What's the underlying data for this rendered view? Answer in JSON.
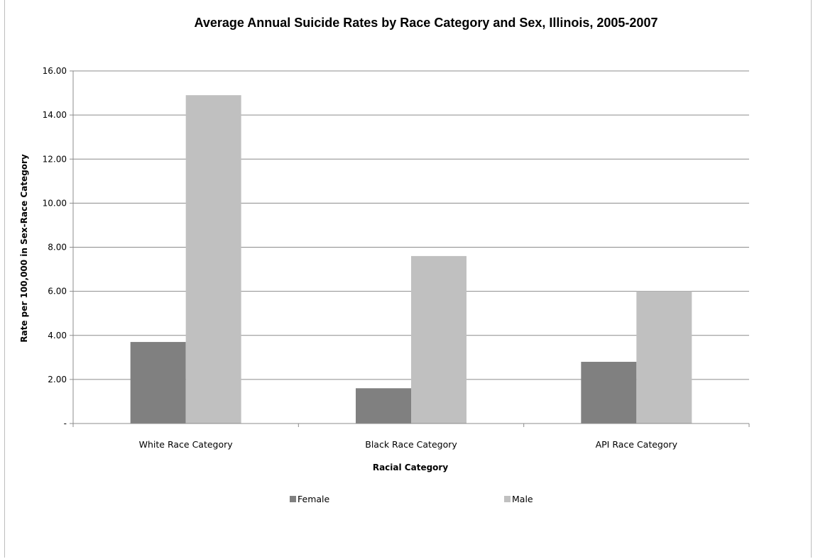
{
  "chart_data": {
    "type": "bar",
    "title": "Average Annual Suicide Rates by Race Category and Sex, Illinois, 2005-2007",
    "xlabel": "Racial Category",
    "ylabel": "Rate per 100,000 in Sex-Race Category",
    "categories": [
      "White Race Category",
      "Black Race Category",
      "API Race Category"
    ],
    "series": [
      {
        "name": "Female",
        "color": "#808080",
        "values": [
          3.7,
          1.6,
          2.8
        ]
      },
      {
        "name": "Male",
        "color": "#c0c0c0",
        "values": [
          14.9,
          7.6,
          6.0
        ]
      }
    ],
    "ylim": [
      0,
      16
    ],
    "yticks": [
      0,
      2,
      4,
      6,
      8,
      10,
      12,
      14,
      16
    ],
    "ytick_labels": [
      "-",
      "2.00",
      "4.00",
      "6.00",
      "8.00",
      "10.00",
      "12.00",
      "14.00",
      "16.00"
    ],
    "grid": true,
    "legend_position": "bottom"
  }
}
